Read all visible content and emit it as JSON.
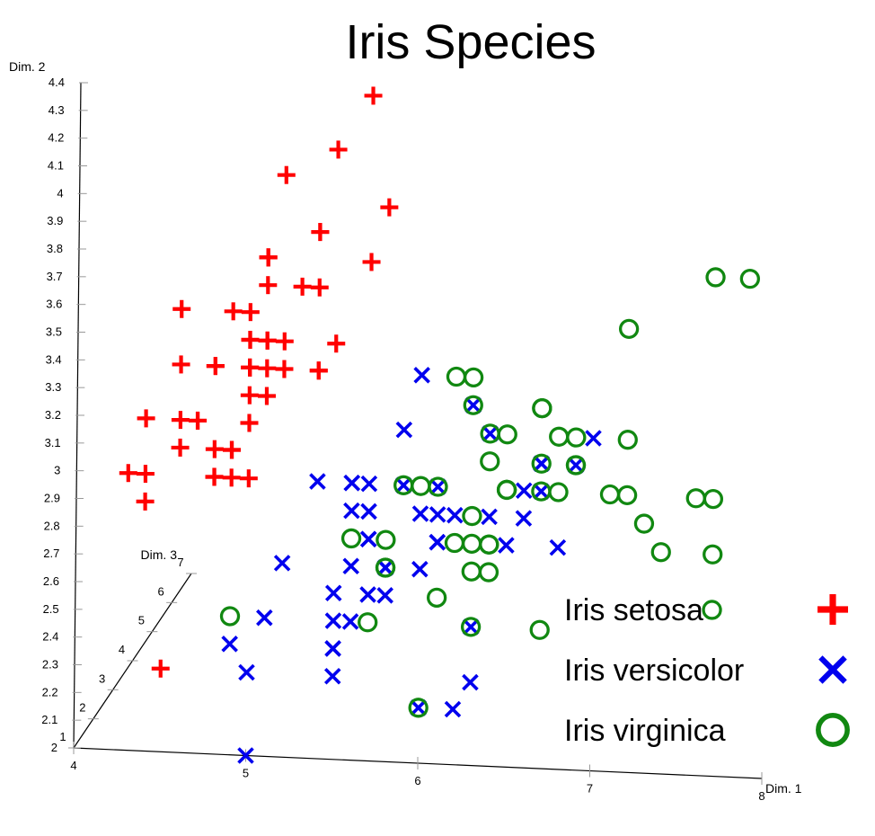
{
  "chart_data": {
    "type": "scatter",
    "title": "Iris Species",
    "axes": {
      "x": {
        "label": "Dim. 1",
        "range": [
          4,
          8
        ],
        "ticks": [
          "4",
          "5",
          "6",
          "7",
          "8"
        ]
      },
      "y": {
        "label": "Dim. 2",
        "range": [
          2,
          4.4
        ],
        "ticks": [
          "2",
          "2.1",
          "2.2",
          "2.3",
          "2.4",
          "2.5",
          "2.6",
          "2.7",
          "2.8",
          "2.9",
          "3",
          "3.1",
          "3.2",
          "3.3",
          "3.4",
          "3.5",
          "3.6",
          "3.7",
          "3.8",
          "3.9",
          "4",
          "4.1",
          "4.2",
          "4.3",
          "4.4"
        ]
      },
      "z": {
        "label": "Dim. 3",
        "range": [
          1,
          7
        ],
        "ticks": [
          "1",
          "2",
          "3",
          "4",
          "5",
          "6",
          "7"
        ]
      }
    },
    "legend_position": "bottom-right",
    "series": [
      {
        "name": "Iris setosa",
        "marker": "plus",
        "color": "#ff0000",
        "points": [
          [
            5.1,
            3.5
          ],
          [
            4.9,
            3.0
          ],
          [
            4.7,
            3.2
          ],
          [
            4.6,
            3.1
          ],
          [
            5.0,
            3.6
          ],
          [
            5.4,
            3.9
          ],
          [
            4.6,
            3.4
          ],
          [
            5.0,
            3.4
          ],
          [
            4.4,
            2.9
          ],
          [
            4.9,
            3.1
          ],
          [
            5.4,
            3.7
          ],
          [
            4.8,
            3.4
          ],
          [
            4.8,
            3.0
          ],
          [
            4.3,
            3.0
          ],
          [
            5.8,
            4.0
          ],
          [
            5.7,
            4.4
          ],
          [
            5.4,
            3.9
          ],
          [
            5.1,
            3.5
          ],
          [
            5.7,
            3.8
          ],
          [
            5.1,
            3.8
          ],
          [
            5.4,
            3.4
          ],
          [
            5.1,
            3.7
          ],
          [
            4.6,
            3.6
          ],
          [
            5.1,
            3.3
          ],
          [
            4.8,
            3.4
          ],
          [
            5.0,
            3.0
          ],
          [
            5.0,
            3.4
          ],
          [
            5.2,
            3.5
          ],
          [
            5.2,
            3.4
          ],
          [
            4.7,
            3.2
          ],
          [
            4.8,
            3.1
          ],
          [
            5.4,
            3.4
          ],
          [
            5.2,
            4.1
          ],
          [
            5.5,
            4.2
          ],
          [
            4.9,
            3.1
          ],
          [
            5.0,
            3.2
          ],
          [
            5.5,
            3.5
          ],
          [
            4.9,
            3.6
          ],
          [
            4.4,
            3.0
          ],
          [
            5.1,
            3.4
          ],
          [
            5.0,
            3.5
          ],
          [
            4.5,
            2.3
          ],
          [
            4.4,
            3.2
          ],
          [
            5.0,
            3.5
          ],
          [
            5.1,
            3.8
          ],
          [
            4.8,
            3.0
          ],
          [
            5.1,
            3.8
          ],
          [
            4.6,
            3.2
          ],
          [
            5.3,
            3.7
          ],
          [
            5.0,
            3.3
          ]
        ]
      },
      {
        "name": "Iris versicolor",
        "marker": "x",
        "color": "#0000ee",
        "points": [
          [
            7.0,
            3.2
          ],
          [
            6.4,
            3.2
          ],
          [
            6.9,
            3.1
          ],
          [
            5.5,
            2.3
          ],
          [
            6.5,
            2.8
          ],
          [
            5.7,
            2.8
          ],
          [
            6.3,
            3.3
          ],
          [
            4.9,
            2.4
          ],
          [
            6.6,
            2.9
          ],
          [
            5.2,
            2.7
          ],
          [
            5.0,
            2.0
          ],
          [
            5.9,
            3.0
          ],
          [
            6.0,
            2.2
          ],
          [
            6.1,
            2.9
          ],
          [
            5.6,
            2.9
          ],
          [
            6.7,
            3.1
          ],
          [
            5.6,
            3.0
          ],
          [
            5.8,
            2.7
          ],
          [
            6.2,
            2.2
          ],
          [
            5.6,
            2.5
          ],
          [
            5.9,
            3.2
          ],
          [
            6.1,
            2.8
          ],
          [
            6.3,
            2.5
          ],
          [
            6.1,
            2.8
          ],
          [
            6.4,
            2.9
          ],
          [
            6.6,
            3.0
          ],
          [
            6.8,
            2.8
          ],
          [
            6.7,
            3.0
          ],
          [
            6.0,
            2.9
          ],
          [
            5.7,
            2.6
          ],
          [
            5.5,
            2.4
          ],
          [
            5.5,
            2.4
          ],
          [
            5.8,
            2.7
          ],
          [
            6.0,
            2.7
          ],
          [
            5.4,
            3.0
          ],
          [
            6.0,
            3.4
          ],
          [
            6.7,
            3.1
          ],
          [
            6.3,
            2.3
          ],
          [
            5.6,
            3.0
          ],
          [
            5.5,
            2.5
          ],
          [
            5.5,
            2.6
          ],
          [
            6.1,
            3.0
          ],
          [
            5.8,
            2.6
          ],
          [
            5.0,
            2.3
          ],
          [
            5.6,
            2.7
          ],
          [
            5.7,
            3.0
          ],
          [
            5.7,
            2.9
          ],
          [
            6.2,
            2.9
          ],
          [
            5.1,
            2.5
          ],
          [
            5.7,
            2.8
          ]
        ]
      },
      {
        "name": "Iris virginica",
        "marker": "circle",
        "color": "#118811",
        "points": [
          [
            6.3,
            3.3
          ],
          [
            5.8,
            2.7
          ],
          [
            7.1,
            3.0
          ],
          [
            6.3,
            2.9
          ],
          [
            6.5,
            3.0
          ],
          [
            7.6,
            3.0
          ],
          [
            4.9,
            2.5
          ],
          [
            7.3,
            2.9
          ],
          [
            6.7,
            2.5
          ],
          [
            7.2,
            3.6
          ],
          [
            6.5,
            3.2
          ],
          [
            6.4,
            2.7
          ],
          [
            6.8,
            3.0
          ],
          [
            5.7,
            2.5
          ],
          [
            5.8,
            2.8
          ],
          [
            6.4,
            3.2
          ],
          [
            6.5,
            3.0
          ],
          [
            7.7,
            3.8
          ],
          [
            7.7,
            2.6
          ],
          [
            6.0,
            2.2
          ],
          [
            6.9,
            3.2
          ],
          [
            5.6,
            2.8
          ],
          [
            7.7,
            2.8
          ],
          [
            6.3,
            2.7
          ],
          [
            6.7,
            3.3
          ],
          [
            7.2,
            3.2
          ],
          [
            6.2,
            2.8
          ],
          [
            6.1,
            3.0
          ],
          [
            6.4,
            2.8
          ],
          [
            7.2,
            3.0
          ],
          [
            7.4,
            2.8
          ],
          [
            7.9,
            3.8
          ],
          [
            6.4,
            2.8
          ],
          [
            6.3,
            2.8
          ],
          [
            6.1,
            2.6
          ],
          [
            7.7,
            3.0
          ],
          [
            6.3,
            3.4
          ],
          [
            6.4,
            3.1
          ],
          [
            6.0,
            3.0
          ],
          [
            6.9,
            3.1
          ],
          [
            6.7,
            3.1
          ],
          [
            6.9,
            3.1
          ],
          [
            5.8,
            2.7
          ],
          [
            6.8,
            3.2
          ],
          [
            6.7,
            3.3
          ],
          [
            6.7,
            3.0
          ],
          [
            6.3,
            2.5
          ],
          [
            6.5,
            3.0
          ],
          [
            6.2,
            3.4
          ],
          [
            5.9,
            3.0
          ]
        ]
      }
    ]
  }
}
